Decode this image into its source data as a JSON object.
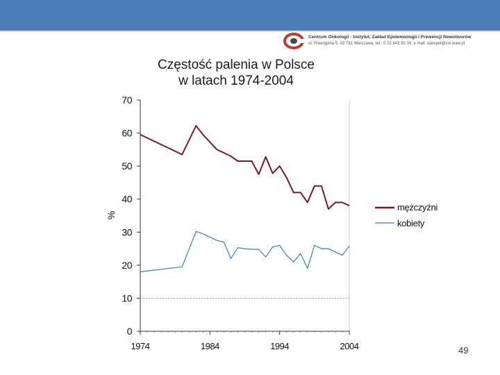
{
  "header": {
    "org_line1": "Centrum Onkologii - Instytut, Zakład Epidemiologii i Prewencji Nowotworów",
    "org_line2": "ul. Roentgena 5, 02 781 Warszawa, tel.: 0 22 643 92 34, e mail: zakepid@coi.waw.pl"
  },
  "page_number": "49",
  "colors": {
    "header_bar": "#4a7db8",
    "men": "#7a1a1a",
    "women": "#3a7fb0"
  },
  "chart_data": {
    "type": "line",
    "title_line1": "Częstość palenia w Polsce",
    "title_line2": "w latach 1974-2004",
    "ylabel": "%",
    "xlabel": "",
    "xlim": [
      1974,
      2004
    ],
    "ylim": [
      0,
      70
    ],
    "yticks": [
      0,
      10,
      20,
      30,
      40,
      50,
      60,
      70
    ],
    "xticks": [
      1974,
      1984,
      1994,
      2004
    ],
    "reference_line": 10,
    "legend_position": "right",
    "series": [
      {
        "name": "mężczyźni",
        "color": "#7a1a1a",
        "points": [
          [
            1974,
            59.5
          ],
          [
            1980,
            53.5
          ],
          [
            1982,
            62.2
          ],
          [
            1983,
            59.5
          ],
          [
            1985,
            55
          ],
          [
            1986,
            54
          ],
          [
            1987,
            53
          ],
          [
            1988,
            51.5
          ],
          [
            1990,
            51.5
          ],
          [
            1991,
            47.5
          ],
          [
            1992,
            52.8
          ],
          [
            1993,
            47.8
          ],
          [
            1994,
            50
          ],
          [
            1995,
            46.5
          ],
          [
            1996,
            42
          ],
          [
            1997,
            42
          ],
          [
            1998,
            39
          ],
          [
            1999,
            44
          ],
          [
            2000,
            44
          ],
          [
            2001,
            37
          ],
          [
            2002,
            39
          ],
          [
            2003,
            39
          ],
          [
            2004,
            38
          ]
        ]
      },
      {
        "name": "kobiety",
        "color": "#3a7fb0",
        "points": [
          [
            1974,
            18
          ],
          [
            1980,
            19.5
          ],
          [
            1982,
            30.2
          ],
          [
            1983,
            29.5
          ],
          [
            1984,
            28.5
          ],
          [
            1985,
            27.5
          ],
          [
            1986,
            27
          ],
          [
            1987,
            22
          ],
          [
            1988,
            25.3
          ],
          [
            1989,
            25
          ],
          [
            1990,
            24.8
          ],
          [
            1991,
            24.8
          ],
          [
            1992,
            22.5
          ],
          [
            1993,
            25.5
          ],
          [
            1994,
            26
          ],
          [
            1995,
            23
          ],
          [
            1996,
            21
          ],
          [
            1997,
            23.5
          ],
          [
            1998,
            19
          ],
          [
            1999,
            26
          ],
          [
            2000,
            25
          ],
          [
            2001,
            25
          ],
          [
            2002,
            24
          ],
          [
            2003,
            23
          ],
          [
            2004,
            25.8
          ]
        ]
      }
    ]
  }
}
